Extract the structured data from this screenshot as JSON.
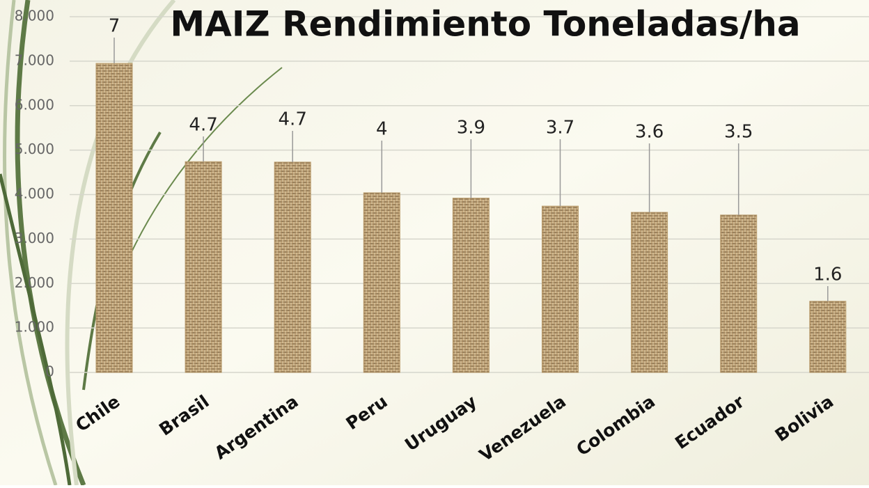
{
  "chart_data": {
    "type": "bar",
    "title": "MAIZ Rendimiento Toneladas/ha",
    "categories": [
      "Chile",
      "Brasil",
      "Argentina",
      "Peru",
      "Uruguay",
      "Venezuela",
      "Colombia",
      "Ecuador",
      "Bolivia"
    ],
    "values": [
      6.95,
      4.74,
      4.73,
      4.04,
      3.92,
      3.74,
      3.6,
      3.54,
      1.6
    ],
    "value_labels": [
      "7",
      "4.7",
      "4.7",
      "4",
      "3.9",
      "3.7",
      "3.6",
      "3.5",
      "1.6"
    ],
    "color": "#b89a6a",
    "ylim": [
      0,
      8
    ],
    "yticks": [
      {
        "value": 0,
        "label": "0"
      },
      {
        "value": 1,
        "label": "1.000"
      },
      {
        "value": 2,
        "label": "2.000"
      },
      {
        "value": 3,
        "label": "3.000"
      },
      {
        "value": 4,
        "label": "4.000"
      },
      {
        "value": 5,
        "label": "5.000"
      },
      {
        "value": 6,
        "label": "6.000"
      },
      {
        "value": 7,
        "label": "7.000"
      },
      {
        "value": 8,
        "label": "8.000"
      }
    ],
    "grid": true
  }
}
